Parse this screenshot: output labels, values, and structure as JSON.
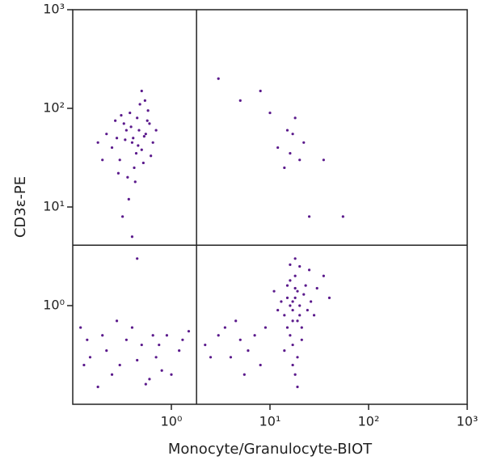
{
  "chart_data": {
    "type": "scatter",
    "x_label": "Monocyte/Granulocyte-BIOT",
    "y_label": "CD3ε-PE",
    "log_x": true,
    "log_y": true,
    "color": "#5b1a8c",
    "xlim": [
      0.1,
      1000
    ],
    "ylim": [
      0.1,
      1000
    ],
    "xticks": [
      {
        "value": 1,
        "label": "10⁰"
      },
      {
        "value": 10,
        "label": "10¹"
      },
      {
        "value": 100,
        "label": "10²"
      },
      {
        "value": 1000,
        "label": "10³"
      }
    ],
    "yticks": [
      {
        "value": 1,
        "label": "10⁰"
      },
      {
        "value": 10,
        "label": "10¹"
      },
      {
        "value": 100,
        "label": "10²"
      },
      {
        "value": 1000,
        "label": "10³"
      }
    ],
    "quadrant": {
      "x": 1.8,
      "y": 4.1
    },
    "x": [
      0.4,
      0.35,
      0.5,
      0.28,
      0.45,
      0.55,
      0.3,
      0.42,
      0.6,
      0.38,
      0.25,
      0.48,
      0.33,
      0.52,
      0.65,
      0.22,
      0.44,
      0.36,
      0.58,
      0.47,
      0.31,
      0.41,
      0.29,
      0.54,
      0.62,
      0.2,
      0.39,
      0.46,
      0.34,
      0.57,
      0.7,
      0.18,
      0.43,
      0.27,
      0.5,
      0.37,
      0.32,
      0.4,
      0.45,
      0.53,
      17,
      15,
      19,
      18,
      16,
      20,
      14,
      22,
      17,
      18,
      16,
      19,
      21,
      13,
      24,
      17,
      18,
      15,
      20,
      23,
      12,
      26,
      19,
      16,
      17,
      30,
      35,
      28,
      11,
      18,
      40,
      25,
      14,
      19,
      21,
      16,
      17,
      20,
      15,
      18,
      0.15,
      0.2,
      0.3,
      0.5,
      0.7,
      0.12,
      0.25,
      0.4,
      0.9,
      1.2,
      0.6,
      0.35,
      0.18,
      0.8,
      1.5,
      0.22,
      0.45,
      1.0,
      0.14,
      0.65,
      0.28,
      0.55,
      0.13,
      1.3,
      0.75,
      5,
      8,
      12,
      14,
      15,
      16,
      18,
      20,
      22,
      10,
      35,
      25,
      55,
      3,
      17,
      2.2,
      3,
      4,
      5,
      6,
      7,
      8,
      9,
      2.5,
      3.5,
      5.5,
      4.5
    ],
    "y": [
      45,
      60,
      38,
      50,
      80,
      55,
      30,
      25,
      70,
      90,
      40,
      110,
      70,
      28,
      45,
      55,
      35,
      20,
      95,
      60,
      85,
      50,
      22,
      120,
      33,
      30,
      65,
      42,
      48,
      75,
      60,
      45,
      18,
      75,
      150,
      12,
      8,
      5,
      3,
      52,
      0.9,
      1.2,
      0.7,
      1.5,
      0.5,
      1.0,
      0.8,
      1.3,
      0.4,
      2.0,
      1.8,
      0.3,
      0.6,
      1.1,
      0.9,
      0.25,
      0.2,
      0.6,
      2.5,
      1.6,
      0.9,
      1.1,
      1.4,
      1.0,
      0.7,
      1.5,
      2.0,
      0.8,
      1.4,
      3.0,
      1.2,
      2.3,
      0.35,
      0.15,
      0.45,
      2.6,
      1.1,
      0.8,
      1.6,
      1.2,
      0.3,
      0.5,
      0.25,
      0.4,
      0.3,
      0.6,
      0.2,
      0.6,
      0.5,
      0.35,
      0.18,
      0.45,
      0.15,
      0.22,
      0.55,
      0.35,
      0.28,
      0.2,
      0.45,
      0.5,
      0.7,
      0.16,
      0.25,
      0.45,
      0.4,
      120,
      150,
      40,
      25,
      60,
      35,
      80,
      30,
      45,
      90,
      30,
      8,
      8,
      200,
      55,
      0.4,
      0.5,
      0.3,
      0.45,
      0.35,
      0.5,
      0.25,
      0.6,
      0.3,
      0.6,
      0.2,
      0.7
    ]
  }
}
